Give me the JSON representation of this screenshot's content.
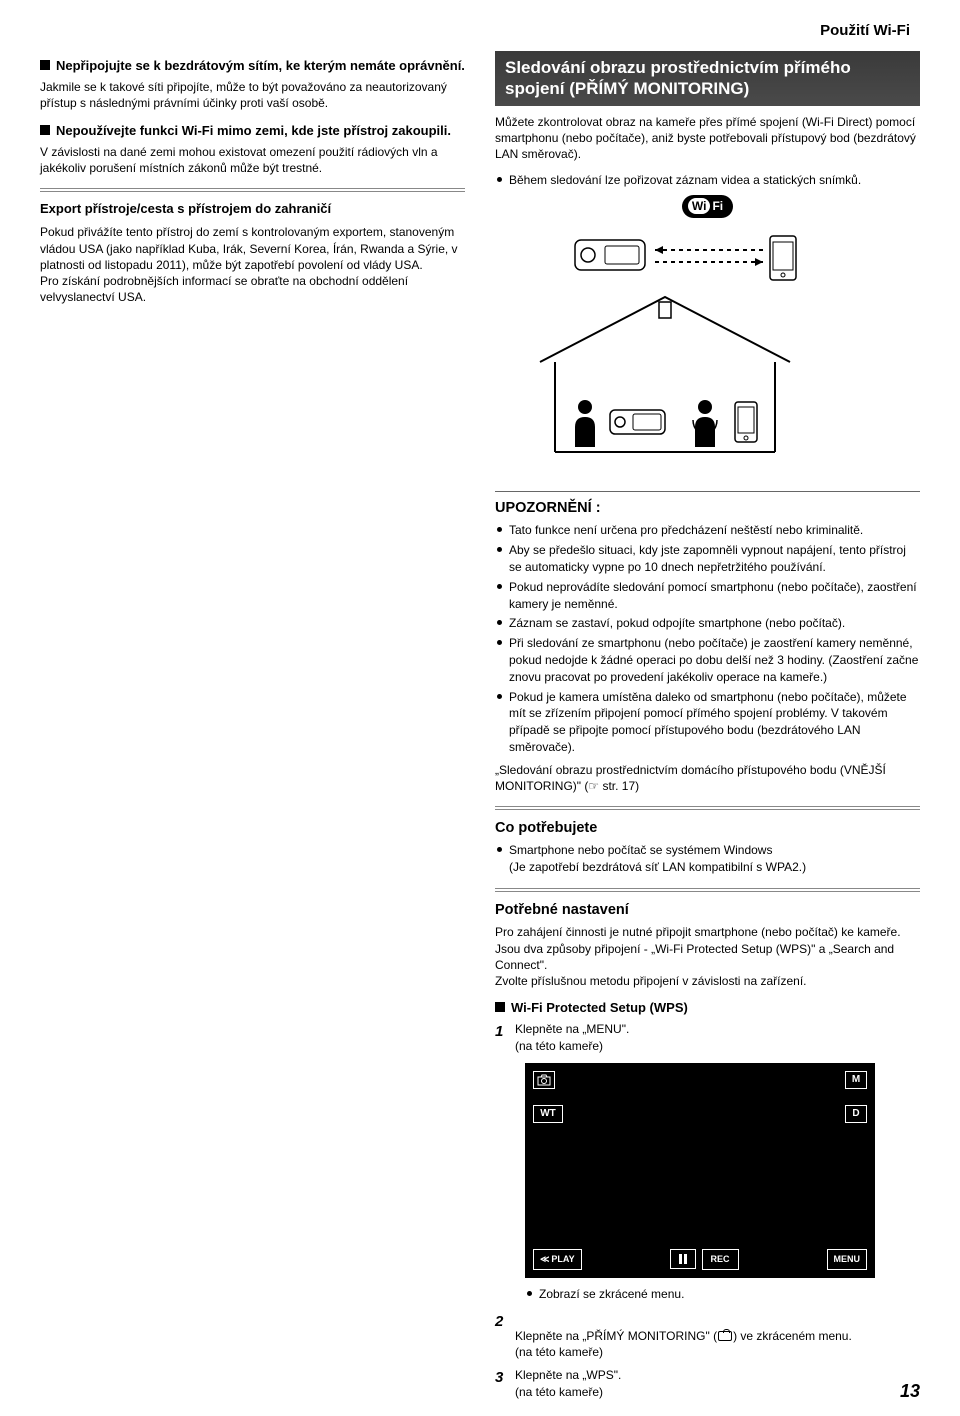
{
  "page_header": "Použití Wi-Fi",
  "page_number": "13",
  "left": {
    "h1": "Nepřipojujte se k bezdrátovým sítím, ke kterým nemáte oprávnění.",
    "p1": "Jakmile se k takové síti připojíte, může to být považováno za neautorizovaný přístup s následnými právními účinky proti vaší osobě.",
    "h2": "Nepoužívejte funkci Wi-Fi mimo zemi, kde jste přístroj zakoupili.",
    "p2": "V závislosti na dané zemi mohou existovat omezení použití rádiových vln a jakékoliv porušení místních zákonů může být trestné.",
    "export_title": "Export přístroje/cesta s přístrojem do zahraničí",
    "export_body": "Pokud přivážíte tento přístroj do zemí s kontrolovaným exportem, stanoveným vládou USA (jako například Kuba, Irák, Severní Korea, Írán, Rwanda a Sýrie, v platnosti od listopadu 2011), může být zapotřebí povolení od vlády USA.\nPro získání podrobnějších informací se obraťte na obchodní oddělení velvyslanectví USA."
  },
  "right": {
    "main_title": "Sledování obrazu prostřednictvím přímého spojení (PŘÍMÝ MONITORING)",
    "intro": "Můžete zkontrolovat obraz na kameře přes přímé spojení (Wi-Fi Direct) pomocí smartphonu (nebo počítače), aniž byste potřebovali přístupový bod (bezdrátový LAN směrovač).",
    "intro_bullet": "Během sledování lze pořizovat záznam videa a statických snímků.",
    "wifi_badge_wi": "Wi",
    "wifi_badge_fi": "Fi",
    "upozorneni_title": "UPOZORNĚNÍ :",
    "upozorneni_items": [
      "Tato funkce není určena pro předcházení neštěstí nebo kriminalitě.",
      "Aby se předešlo situaci, kdy jste zapomněli vypnout napájení, tento přístroj se automaticky vypne po 10 dnech nepřetržitého používání.",
      "Pokud neprovádíte sledování pomocí smartphonu (nebo počítače), zaostření kamery je neměnné.",
      "Záznam se zastaví, pokud odpojíte smartphone (nebo počítač).",
      "Při sledování ze smartphonu (nebo počítače) je zaostření kamery neměnné, pokud nedojde k žádné operaci po dobu delší než 3 hodiny. (Zaostření začne znovu pracovat po provedení jakékoliv operace na kameře.)",
      "Pokud je kamera umístěna daleko od smartphonu (nebo počítače), můžete mít se zřízením připojení pomocí přímého spojení problémy. V takovém případě se připojte pomocí přístupového bodu (bezdrátového LAN směrovače)."
    ],
    "upozorneni_footer": "„Sledování obrazu prostřednictvím domácího přístupového bodu (VNĚJŠÍ MONITORING)\" (☞ str. 17)",
    "co_title": "Co potřebujete",
    "co_items": [
      "Smartphone nebo počítač se systémem Windows\n(Je zapotřebí bezdrátová síť LAN kompatibilní s WPA2.)"
    ],
    "potrebne_title": "Potřebné nastavení",
    "potrebne_body": "Pro zahájení činnosti je nutné připojit smartphone (nebo počítač) ke kameře. Jsou dva způsoby připojení - „Wi-Fi Protected Setup (WPS)\" a „Search and Connect\".\nZvolte příslušnou metodu připojení v závislosti na zařízení.",
    "wps_title": "Wi-Fi Protected Setup (WPS)",
    "steps": [
      {
        "n": "1",
        "text": "Klepněte na „MENU\".\n(na této kameře)"
      },
      {
        "n": "2",
        "text_before": "Klepněte na „PŘÍMÝ MONITORING\" (",
        "text_after": ") ve zkráceném menu.\n(na této kameře)"
      },
      {
        "n": "3",
        "text": "Klepněte na „WPS\".\n(na této kameře)"
      }
    ],
    "screen_bullet": "Zobrazí se zkrácené menu.",
    "screen": {
      "wt": "WT",
      "m": "M",
      "d": "D",
      "play": "PLAY",
      "rec": "REC",
      "menu": "MENU"
    }
  }
}
